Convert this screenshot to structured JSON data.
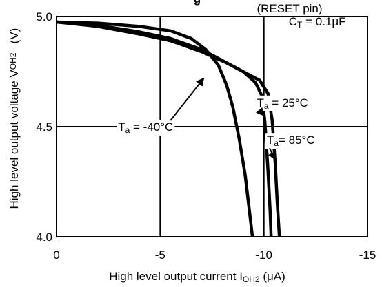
{
  "chart_data": {
    "type": "line",
    "title_fragment": "g",
    "subtitle": "(RESET pin)",
    "xlabel": {
      "main": "High level output current I",
      "sub": "OH2",
      "unit": " (μA)"
    },
    "ylabel": {
      "main": "High level output voltage V",
      "sub": "OH2",
      "unit": "(V)"
    },
    "xlim": [
      0,
      -15
    ],
    "ylim": [
      4.0,
      5.0
    ],
    "x_ticks": [
      {
        "value": 0,
        "label": "0"
      },
      {
        "value": -5,
        "label": "-5"
      },
      {
        "value": -10,
        "label": "-10"
      },
      {
        "value": -15,
        "label": "-15"
      }
    ],
    "y_ticks": [
      {
        "value": 5.0,
        "label": "5.0"
      },
      {
        "value": 4.5,
        "label": "4.5"
      },
      {
        "value": 4.0,
        "label": "4.0"
      }
    ],
    "grid": true,
    "condition": {
      "main": "C",
      "sub": "T",
      "rest": " = 0.1μF"
    },
    "series": [
      {
        "name": "Ta = -40°C",
        "label_main": "T",
        "label_sub": "a",
        "label_rest": " = -40°C",
        "x": [
          0,
          -2,
          -4,
          -5.5,
          -6.5,
          -7.2,
          -7.8,
          -8.2,
          -8.5,
          -8.8,
          -9.1,
          -9.3,
          -9.45
        ],
        "y": [
          4.975,
          4.97,
          4.955,
          4.935,
          4.9,
          4.85,
          4.78,
          4.69,
          4.59,
          4.45,
          4.28,
          4.12,
          4.0
        ]
      },
      {
        "name": "Ta = 25°C",
        "label_main": "T",
        "label_sub": "a",
        "label_rest": " = 25°C",
        "x": [
          0,
          -2,
          -4,
          -5.5,
          -7,
          -8,
          -9,
          -9.6,
          -9.9,
          -10.05,
          -10.2,
          -10.3,
          -10.35
        ],
        "y": [
          4.975,
          4.96,
          4.93,
          4.9,
          4.85,
          4.8,
          4.75,
          4.7,
          4.64,
          4.52,
          4.3,
          4.12,
          4.0
        ]
      },
      {
        "name": "Ta= 85°C",
        "label_main": "T",
        "label_sub": "a",
        "label_rest": "= 85°C",
        "x": [
          0,
          -2,
          -4,
          -5.5,
          -7,
          -8.2,
          -9.2,
          -9.8,
          -10.2,
          -10.4,
          -10.55,
          -10.65,
          -10.75
        ],
        "y": [
          4.975,
          4.955,
          4.92,
          4.89,
          4.84,
          4.79,
          4.74,
          4.71,
          4.65,
          4.53,
          4.33,
          4.15,
          4.0
        ]
      }
    ],
    "annotations": [
      {
        "series": 0,
        "text_x": -4.3,
        "text_y": 4.5,
        "arrow_to": [
          -7.1,
          4.72
        ]
      },
      {
        "series": 1,
        "text_x": -10.9,
        "text_y": 4.61,
        "arrow_to": [
          -10.0,
          4.55
        ]
      },
      {
        "series": 2,
        "text_x": -11.3,
        "text_y": 4.44,
        "arrow_to": [
          -10.55,
          4.35
        ]
      }
    ],
    "colors": {
      "line": "#000000",
      "background": "#ffffff"
    }
  }
}
